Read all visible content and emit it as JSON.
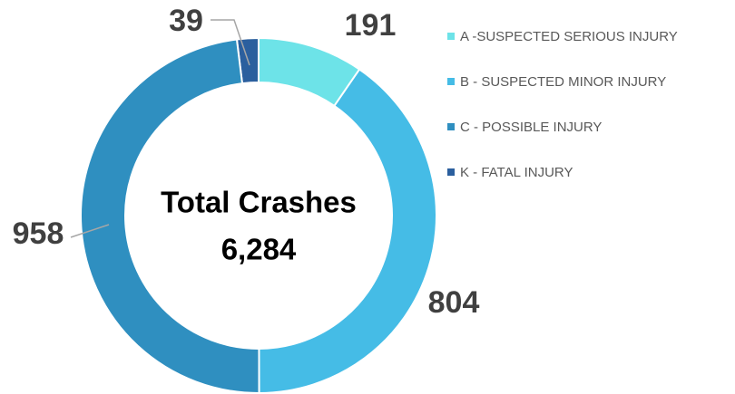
{
  "chart_data": {
    "type": "donut",
    "categories": [
      "A -SUSPECTED SERIOUS INJURY",
      "B - SUSPECTED MINOR INJURY",
      "C - POSSIBLE INJURY",
      "K - FATAL INJURY"
    ],
    "values": [
      191,
      804,
      958,
      39
    ],
    "colors": [
      "#6de3e8",
      "#45bce6",
      "#2f8fc0",
      "#2b5f9e"
    ],
    "annotations": [
      "Total Crashes",
      "6,284"
    ],
    "legend": "right"
  }
}
